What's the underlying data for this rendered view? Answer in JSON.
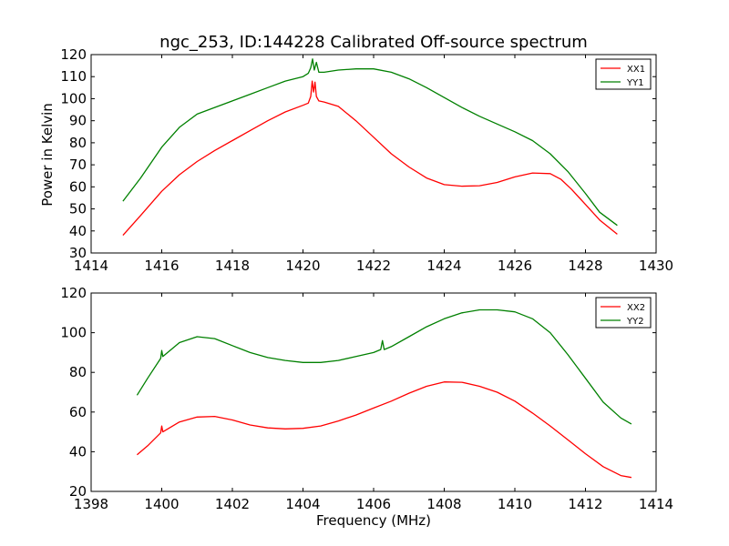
{
  "title": "ngc_253, ID:144228 Calibrated Off-source spectrum",
  "ylabel": "Power in Kelvin",
  "xlabel": "Frequency (MHz)",
  "chart_data": [
    {
      "type": "line",
      "xlim": [
        1414,
        1430
      ],
      "ylim": [
        30,
        120
      ],
      "xticks": [
        1414,
        1416,
        1418,
        1420,
        1422,
        1424,
        1426,
        1428,
        1430
      ],
      "yticks": [
        30,
        40,
        50,
        60,
        70,
        80,
        90,
        100,
        110,
        120
      ],
      "legend_position": "top-right",
      "series": [
        {
          "name": "XX1",
          "color": "#ff0000",
          "x": [
            1414.9,
            1415.4,
            1416.0,
            1416.5,
            1417.0,
            1417.5,
            1418.0,
            1418.5,
            1419.0,
            1419.5,
            1420.0,
            1420.15,
            1420.22,
            1420.26,
            1420.3,
            1420.34,
            1420.38,
            1420.45,
            1420.6,
            1421.0,
            1421.5,
            1422.0,
            1422.5,
            1423.0,
            1423.5,
            1424.0,
            1424.5,
            1425.0,
            1425.5,
            1426.0,
            1426.5,
            1427.0,
            1427.3,
            1427.6,
            1428.0,
            1428.4,
            1428.9
          ],
          "y": [
            38,
            47,
            58,
            65.5,
            71.5,
            76.5,
            81,
            85.5,
            90,
            94,
            97,
            98,
            101,
            108,
            103,
            107.5,
            101,
            99,
            98.5,
            96.5,
            90,
            82.5,
            75,
            69,
            64,
            61,
            60.3,
            60.5,
            62,
            64.5,
            66.3,
            66,
            63.5,
            59,
            52,
            45,
            38.5
          ]
        },
        {
          "name": "YY1",
          "color": "#008000",
          "x": [
            1414.9,
            1415.4,
            1416.0,
            1416.5,
            1417.0,
            1417.5,
            1418.0,
            1418.5,
            1419.0,
            1419.5,
            1420.0,
            1420.15,
            1420.22,
            1420.27,
            1420.32,
            1420.38,
            1420.45,
            1420.6,
            1421.0,
            1421.5,
            1422.0,
            1422.5,
            1423.0,
            1423.5,
            1424.0,
            1424.5,
            1425.0,
            1425.5,
            1426.0,
            1426.5,
            1427.0,
            1427.5,
            1428.0,
            1428.4,
            1428.9
          ],
          "y": [
            53.5,
            64,
            78,
            87,
            93,
            96,
            99,
            102,
            105,
            108,
            110,
            111.5,
            114,
            118,
            113,
            116.5,
            112,
            112,
            113,
            113.5,
            113.5,
            112,
            109,
            105,
            100.5,
            96,
            92,
            88.5,
            85,
            81,
            75,
            67,
            57,
            48.5,
            42.5
          ]
        }
      ]
    },
    {
      "type": "line",
      "xlim": [
        1398,
        1414
      ],
      "ylim": [
        20,
        120
      ],
      "xticks": [
        1398,
        1400,
        1402,
        1404,
        1406,
        1408,
        1410,
        1412,
        1414
      ],
      "yticks": [
        20,
        40,
        60,
        80,
        100,
        120
      ],
      "legend_position": "top-right",
      "series": [
        {
          "name": "XX2",
          "color": "#ff0000",
          "x": [
            1399.3,
            1399.6,
            1399.97,
            1400.0,
            1400.03,
            1400.5,
            1401.0,
            1401.5,
            1402.0,
            1402.5,
            1403.0,
            1403.5,
            1404.0,
            1404.5,
            1405.0,
            1405.5,
            1406.0,
            1406.5,
            1407.0,
            1407.5,
            1408.0,
            1408.5,
            1409.0,
            1409.5,
            1410.0,
            1410.5,
            1411.0,
            1411.5,
            1412.0,
            1412.5,
            1413.0,
            1413.3
          ],
          "y": [
            38.5,
            43,
            49.5,
            53,
            50,
            55,
            57.5,
            57.8,
            56,
            53.5,
            52,
            51.5,
            51.8,
            53,
            55.5,
            58.5,
            62,
            65.5,
            69.5,
            73,
            75.2,
            75,
            73,
            70,
            65.5,
            59.5,
            53,
            46,
            39,
            32.5,
            28,
            27
          ]
        },
        {
          "name": "YY2",
          "color": "#008000",
          "x": [
            1399.3,
            1399.6,
            1399.97,
            1400.0,
            1400.03,
            1400.5,
            1401.0,
            1401.5,
            1402.0,
            1402.5,
            1403.0,
            1403.5,
            1404.0,
            1404.5,
            1405.0,
            1405.5,
            1406.0,
            1406.2,
            1406.25,
            1406.3,
            1406.5,
            1407.0,
            1407.5,
            1408.0,
            1408.5,
            1409.0,
            1409.5,
            1410.0,
            1410.5,
            1411.0,
            1411.5,
            1412.0,
            1412.5,
            1413.0,
            1413.3
          ],
          "y": [
            68.5,
            77,
            87,
            91,
            88,
            95,
            98,
            97,
            93.5,
            90,
            87.5,
            86,
            85,
            85,
            86,
            88,
            90,
            91.5,
            96,
            91.5,
            93,
            98,
            103,
            107,
            110,
            111.5,
            111.5,
            110.5,
            107,
            100,
            89,
            77,
            65,
            57,
            54
          ]
        }
      ]
    }
  ]
}
